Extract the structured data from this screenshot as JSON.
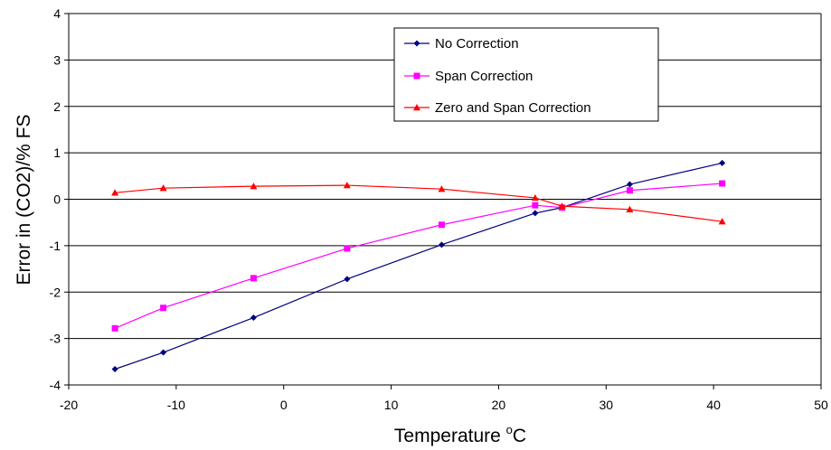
{
  "chart_data": {
    "type": "line",
    "title": "",
    "xlabel": "Temperature",
    "xlabel_unit": "C",
    "xlabel_unit_prefix": "o",
    "ylabel": "Error in (CO2)/% FS",
    "xlim": [
      -20,
      50
    ],
    "ylim": [
      -4,
      4
    ],
    "xticks": [
      -20,
      -10,
      0,
      10,
      20,
      30,
      40,
      50
    ],
    "yticks": [
      -4,
      -3,
      -2,
      -1,
      0,
      1,
      2,
      3,
      4
    ],
    "grid": "horizontal",
    "legend_position": "top-right",
    "series": [
      {
        "name": "No Correction",
        "color": "#000080",
        "marker": "diamond",
        "x": [
          -15.7,
          -11.2,
          -2.8,
          5.9,
          14.7,
          23.4,
          25.9,
          32.2,
          40.8
        ],
        "y": [
          -3.66,
          -3.3,
          -2.55,
          -1.72,
          -0.98,
          -0.3,
          -0.18,
          0.32,
          0.78
        ]
      },
      {
        "name": "Span Correction",
        "color": "#ff00ff",
        "marker": "square",
        "x": [
          -15.7,
          -11.2,
          -2.8,
          5.9,
          14.7,
          23.4,
          25.9,
          32.2,
          40.8
        ],
        "y": [
          -2.78,
          -2.34,
          -1.7,
          -1.06,
          -0.55,
          -0.13,
          -0.18,
          0.19,
          0.34
        ]
      },
      {
        "name": "Zero and Span Correction",
        "color": "#ff0000",
        "marker": "triangle",
        "x": [
          -15.7,
          -11.2,
          -2.8,
          5.9,
          14.7,
          23.4,
          25.9,
          32.2,
          40.8
        ],
        "y": [
          0.14,
          0.24,
          0.28,
          0.3,
          0.22,
          0.03,
          -0.15,
          -0.22,
          -0.48
        ]
      }
    ]
  }
}
